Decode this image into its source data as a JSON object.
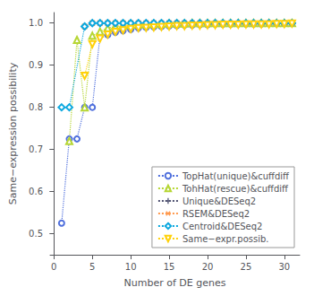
{
  "chart_data": {
    "type": "line",
    "xlabel": "Number of DE genes",
    "ylabel": "Same−expression possibility",
    "x": [
      1,
      2,
      3,
      4,
      5,
      6,
      7,
      8,
      9,
      10,
      11,
      12,
      13,
      14,
      15,
      16,
      17,
      18,
      19,
      20,
      21,
      22,
      23,
      24,
      25,
      26,
      27,
      28,
      29,
      30,
      31
    ],
    "xlim": [
      -0.5,
      32
    ],
    "xticks": [
      0,
      5,
      10,
      15,
      20,
      25,
      30
    ],
    "ylim": [
      0.45,
      1.025
    ],
    "yticks": [
      0.5,
      0.6,
      0.7,
      0.8,
      0.9,
      {
        "value": 1.0,
        "label": "1.0"
      }
    ],
    "grid": false,
    "legend": "lower right",
    "line_style": "dotted",
    "series": [
      {
        "name": "TopHat(unique)&cuffdiff",
        "marker": "circle",
        "values": [
          0.525,
          0.725,
          0.725,
          0.8,
          0.8,
          0.97,
          0.972,
          0.978,
          0.982,
          0.985,
          0.988,
          0.99,
          0.991,
          0.992,
          0.993,
          0.994,
          0.995,
          0.995,
          0.996,
          0.996,
          0.997,
          0.997,
          0.997,
          0.998,
          0.998,
          0.998,
          0.998,
          0.999,
          0.999,
          0.999,
          1.0
        ]
      },
      {
        "name": "TohHat(rescue)&cuffdiff",
        "marker": "triangle-up",
        "values": [
          null,
          0.72,
          0.96,
          0.8,
          0.97,
          0.98,
          0.988,
          0.992,
          0.994,
          0.996,
          0.997,
          0.997,
          0.998,
          0.998,
          0.999,
          0.999,
          0.999,
          1.0,
          1.0,
          1.0,
          1.0,
          1.0,
          1.0,
          1.0,
          1.0,
          1.0,
          1.0,
          1.0,
          1.0,
          1.0,
          1.0
        ]
      },
      {
        "name": "Unique&DESeq2",
        "marker": "plus",
        "values": [
          null,
          null,
          null,
          0.992,
          1.0,
          1.0,
          1.0,
          1.0,
          1.0,
          1.0,
          1.0,
          1.0,
          1.0,
          1.0,
          1.0,
          1.0,
          1.0,
          1.0,
          1.0,
          1.0,
          1.0,
          1.0,
          1.0,
          1.0,
          1.0,
          1.0,
          1.0,
          1.0,
          1.0,
          1.0,
          1.0
        ]
      },
      {
        "name": "RSEM&DESeq2",
        "marker": "x",
        "values": [
          null,
          null,
          null,
          0.992,
          1.0,
          1.0,
          1.0,
          1.0,
          1.0,
          1.0,
          1.0,
          1.0,
          1.0,
          1.0,
          1.0,
          1.0,
          1.0,
          1.0,
          1.0,
          1.0,
          1.0,
          1.0,
          1.0,
          1.0,
          1.0,
          1.0,
          1.0,
          1.0,
          1.0,
          1.0,
          1.0
        ]
      },
      {
        "name": "Centroid&DESeq2",
        "marker": "diamond",
        "values": [
          0.8,
          0.8,
          null,
          0.992,
          1.0,
          1.0,
          1.0,
          1.0,
          1.0,
          1.0,
          1.0,
          1.0,
          1.0,
          1.0,
          1.0,
          1.0,
          1.0,
          1.0,
          1.0,
          1.0,
          1.0,
          1.0,
          1.0,
          1.0,
          1.0,
          1.0,
          1.0,
          1.0,
          1.0,
          1.0,
          1.0
        ]
      },
      {
        "name": "Same−expr.possib.",
        "marker": "triangle-down",
        "values": [
          null,
          null,
          null,
          0.875,
          0.95,
          0.963,
          0.973,
          0.979,
          0.983,
          0.986,
          0.988,
          0.989,
          0.99,
          0.991,
          0.992,
          0.993,
          0.993,
          0.994,
          0.994,
          0.995,
          0.995,
          0.996,
          0.996,
          0.996,
          0.997,
          0.997,
          0.997,
          0.997,
          0.998,
          0.998,
          0.999
        ]
      }
    ]
  }
}
